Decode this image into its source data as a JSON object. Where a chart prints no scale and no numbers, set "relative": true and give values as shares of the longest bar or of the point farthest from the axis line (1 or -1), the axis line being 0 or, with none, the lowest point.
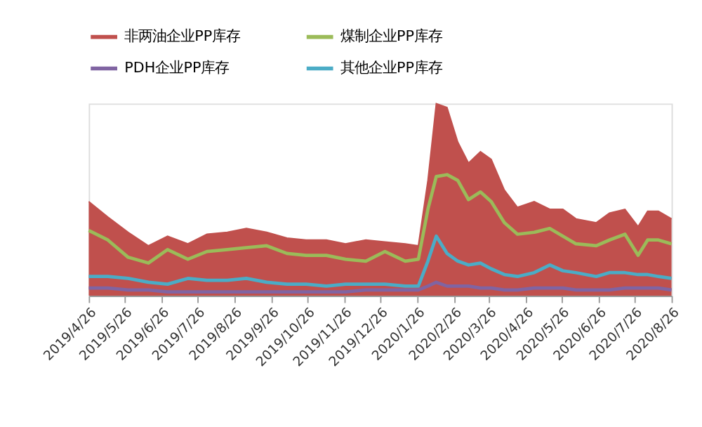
{
  "chart_data": {
    "type": "line",
    "relative": true,
    "legend": "top",
    "grid": false,
    "marker": "none",
    "x": [
      "2019-04-26",
      "2019-05-12",
      "2019-05-29",
      "2019-06-15",
      "2019-07-01",
      "2019-07-18",
      "2019-08-03",
      "2019-08-20",
      "2019-09-05",
      "2019-09-22",
      "2019-10-09",
      "2019-10-25",
      "2019-11-11",
      "2019-11-27",
      "2019-12-14",
      "2019-12-30",
      "2020-01-16",
      "2020-01-27",
      "2020-02-04",
      "2020-02-11",
      "2020-02-20",
      "2020-02-29",
      "2020-03-09",
      "2020-03-19",
      "2020-03-28",
      "2020-04-08",
      "2020-04-19",
      "2020-05-03",
      "2020-05-16",
      "2020-05-27",
      "2020-06-07",
      "2020-06-24",
      "2020-07-05",
      "2020-07-18",
      "2020-07-29",
      "2020-08-06",
      "2020-08-15",
      "2020-08-26"
    ],
    "xlim": [
      "2019-04-26",
      "2020-08-26"
    ],
    "xticks": [
      {
        "value": "2019-04-26",
        "label": "2019/4/26"
      },
      {
        "value": "2019-05-26",
        "label": "2019/5/26"
      },
      {
        "value": "2019-06-26",
        "label": "2019/6/26"
      },
      {
        "value": "2019-07-26",
        "label": "2019/7/26"
      },
      {
        "value": "2019-08-26",
        "label": "2019/8/26"
      },
      {
        "value": "2019-09-26",
        "label": "2019/9/26"
      },
      {
        "value": "2019-10-26",
        "label": "2019/10/26"
      },
      {
        "value": "2019-11-26",
        "label": "2019/11/26"
      },
      {
        "value": "2019-12-26",
        "label": "2019/12/26"
      },
      {
        "value": "2020-01-26",
        "label": "2020/1/26"
      },
      {
        "value": "2020-02-26",
        "label": "2020/2/26"
      },
      {
        "value": "2020-03-26",
        "label": "2020/3/26"
      },
      {
        "value": "2020-04-26",
        "label": "2020/4/26"
      },
      {
        "value": "2020-05-26",
        "label": "2020/5/26"
      },
      {
        "value": "2020-06-26",
        "label": "2020/6/26"
      },
      {
        "value": "2020-07-26",
        "label": "2020/7/26"
      },
      {
        "value": "2020-08-26",
        "label": "2020/8/26"
      }
    ],
    "series": [
      {
        "name": "非两油企业PP库存",
        "type": "area",
        "color": "#c0504d",
        "values": [
          0.49,
          0.41,
          0.33,
          0.26,
          0.31,
          0.27,
          0.32,
          0.33,
          0.35,
          0.33,
          0.3,
          0.29,
          0.29,
          0.27,
          0.29,
          0.28,
          0.27,
          0.26,
          0.6,
          1.0,
          0.98,
          0.8,
          0.69,
          0.75,
          0.71,
          0.55,
          0.46,
          0.49,
          0.45,
          0.45,
          0.4,
          0.38,
          0.43,
          0.45,
          0.36,
          0.44,
          0.44,
          0.4
        ]
      },
      {
        "name": "煤制企业PP库存",
        "color": "#9bbb59",
        "values": [
          0.34,
          0.29,
          0.2,
          0.17,
          0.24,
          0.19,
          0.23,
          0.24,
          0.25,
          0.26,
          0.22,
          0.21,
          0.21,
          0.19,
          0.18,
          0.23,
          0.18,
          0.19,
          0.45,
          0.62,
          0.63,
          0.6,
          0.5,
          0.54,
          0.49,
          0.38,
          0.32,
          0.33,
          0.35,
          0.31,
          0.27,
          0.26,
          0.29,
          0.32,
          0.21,
          0.29,
          0.29,
          0.27
        ]
      },
      {
        "name": "PDH企业PP库存",
        "color": "#8064a2",
        "values": [
          0.04,
          0.04,
          0.03,
          0.03,
          0.02,
          0.02,
          0.02,
          0.02,
          0.02,
          0.02,
          0.02,
          0.02,
          0.02,
          0.02,
          0.03,
          0.03,
          0.03,
          0.03,
          0.05,
          0.07,
          0.05,
          0.05,
          0.05,
          0.04,
          0.04,
          0.03,
          0.03,
          0.04,
          0.04,
          0.04,
          0.03,
          0.03,
          0.03,
          0.04,
          0.04,
          0.04,
          0.04,
          0.03
        ]
      },
      {
        "name": "其他企业PP库存",
        "color": "#4bacc6",
        "values": [
          0.1,
          0.1,
          0.09,
          0.07,
          0.06,
          0.09,
          0.08,
          0.08,
          0.09,
          0.07,
          0.06,
          0.06,
          0.05,
          0.06,
          0.06,
          0.06,
          0.05,
          0.05,
          0.18,
          0.31,
          0.22,
          0.18,
          0.16,
          0.17,
          0.14,
          0.11,
          0.1,
          0.12,
          0.16,
          0.13,
          0.12,
          0.1,
          0.12,
          0.12,
          0.11,
          0.11,
          0.1,
          0.09
        ]
      }
    ]
  }
}
